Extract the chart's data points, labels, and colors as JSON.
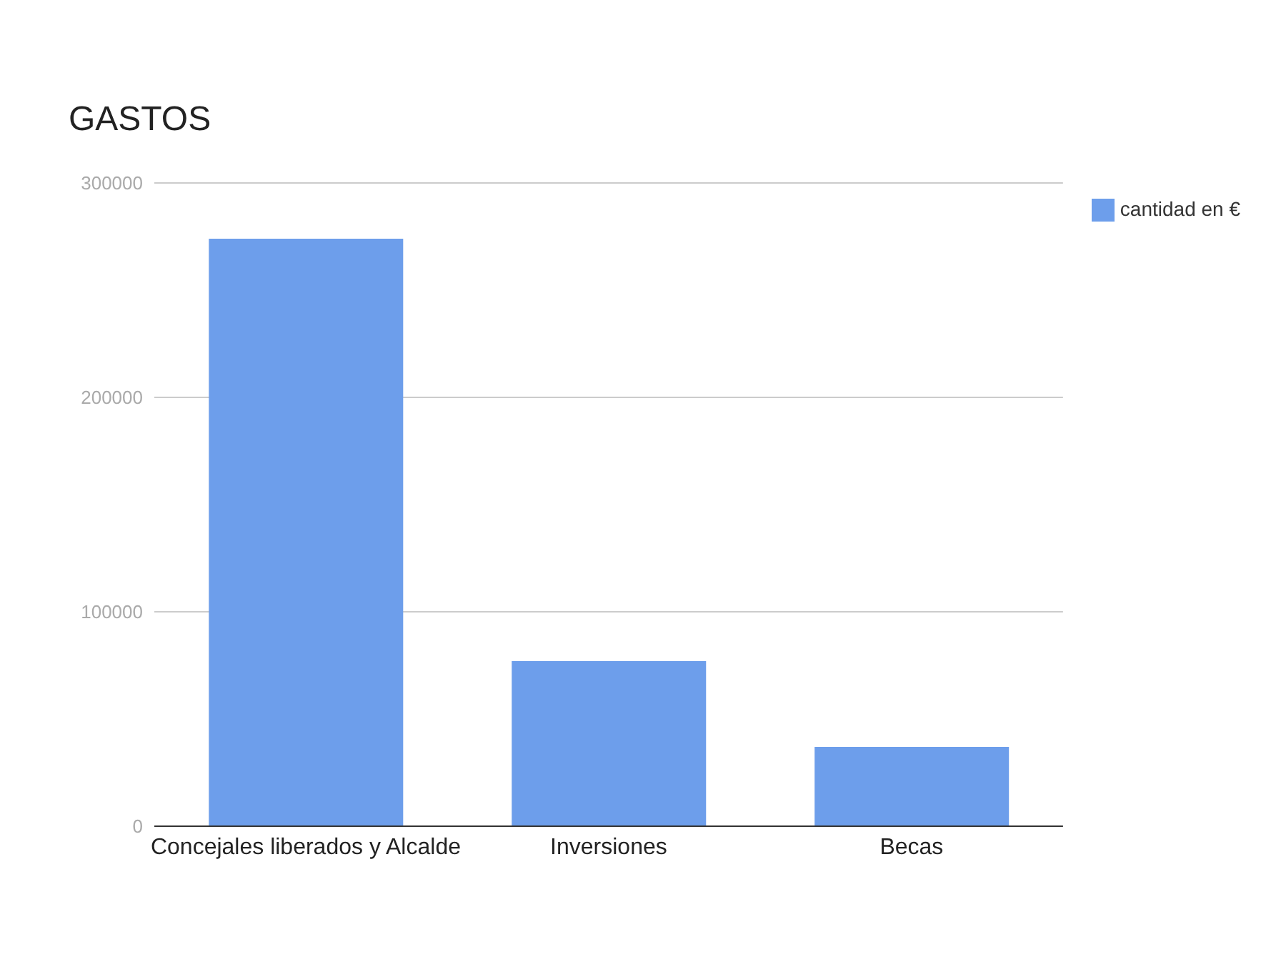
{
  "chart_data": {
    "type": "bar",
    "title": "GASTOS",
    "categories": [
      "Concejales liberados y Alcalde",
      "Inversiones",
      "Becas"
    ],
    "series": [
      {
        "name": "cantidad en €",
        "color": "#6d9eeb",
        "values": [
          274000,
          77000,
          37000
        ]
      }
    ],
    "ylim": [
      0,
      300000
    ],
    "yticks": [
      0,
      100000,
      200000,
      300000
    ],
    "grid": "y",
    "legend": "top right"
  }
}
